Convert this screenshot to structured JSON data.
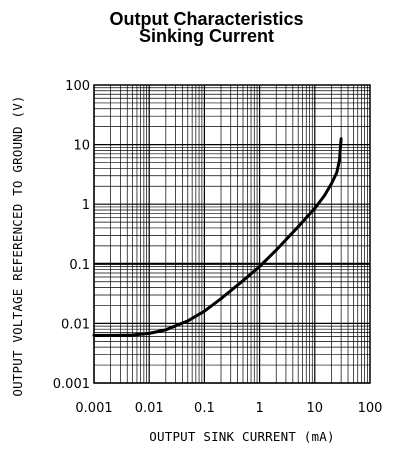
{
  "chart_data": {
    "type": "line",
    "title": "Output Characteristics",
    "subtitle": "Sinking Current",
    "xlabel": "OUTPUT SINK CURRENT (mA)",
    "ylabel": "OUTPUT VOLTAGE REFERENCED TO GROUND (V)",
    "x_scale": "log",
    "y_scale": "log",
    "xlim": [
      0.001,
      100
    ],
    "ylim": [
      0.001,
      100
    ],
    "x_ticks": [
      "0.001",
      "0.01",
      "0.1",
      "1",
      "10",
      "100"
    ],
    "y_ticks": [
      "0.001",
      "0.01",
      "0.1",
      "1",
      "10",
      "100"
    ],
    "grid": true,
    "series": [
      {
        "color": "#000000",
        "points": [
          [
            0.001,
            0.0063
          ],
          [
            0.002,
            0.0063
          ],
          [
            0.005,
            0.0064
          ],
          [
            0.01,
            0.0068
          ],
          [
            0.02,
            0.0078
          ],
          [
            0.05,
            0.011
          ],
          [
            0.1,
            0.016
          ],
          [
            0.2,
            0.026
          ],
          [
            0.5,
            0.052
          ],
          [
            1,
            0.09
          ],
          [
            2,
            0.17
          ],
          [
            5,
            0.42
          ],
          [
            10,
            0.85
          ],
          [
            15,
            1.4
          ],
          [
            20,
            2.2
          ],
          [
            25,
            3.4
          ],
          [
            28,
            5.5
          ],
          [
            30,
            12.5
          ]
        ]
      }
    ]
  }
}
